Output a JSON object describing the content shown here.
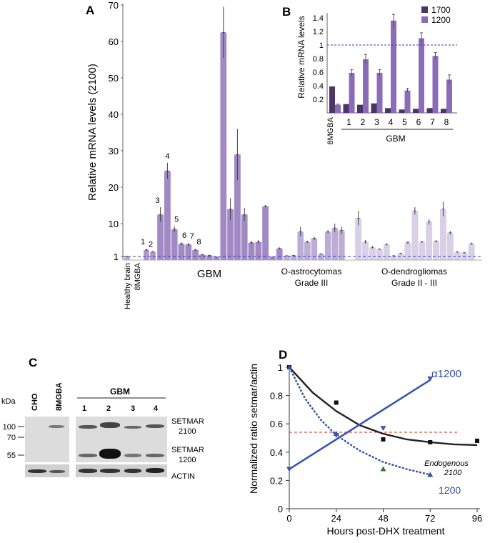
{
  "panelA": {
    "label": "A",
    "ylabel": "Relative mRNA levels (2100)",
    "yticks": [
      1,
      10,
      20,
      30,
      40,
      50,
      60,
      70
    ],
    "ylim": [
      0,
      70
    ],
    "groups": {
      "healthy": "Healthy brain",
      "mgba": "8MGBA",
      "gbm": "GBM",
      "oastro": "O-astrocytomas",
      "oastro_grade": "Grade III",
      "odendro": "O-dendrogliomas",
      "odendro_grade": "Grade II - III"
    },
    "sample_numbers": [
      "1",
      "2",
      "3",
      "4",
      "5",
      "6",
      "7",
      "8"
    ],
    "chart_data": {
      "type": "bar",
      "reference_line": 1,
      "healthy": [
        {
          "value": 1,
          "err": 0.2
        }
      ],
      "mgba": [
        {
          "value": 2.8,
          "err": 0.3
        },
        {
          "value": 2.3,
          "err": 0.2
        }
      ],
      "gbm": [
        {
          "value": 12.5,
          "err": 2.0
        },
        {
          "value": 24.5,
          "err": 2.2
        },
        {
          "value": 8.5,
          "err": 0.8
        },
        {
          "value": 4.5,
          "err": 0.4
        },
        {
          "value": 4.3,
          "err": 0.4
        },
        {
          "value": 2.8,
          "err": 0.3
        },
        {
          "value": 1.5,
          "err": 0.2
        },
        {
          "value": 1.3,
          "err": 0.2
        },
        {
          "value": 0.8,
          "err": 0.2
        },
        {
          "value": 62.5,
          "err": 7.0
        },
        {
          "value": 14.0,
          "err": 3.0
        },
        {
          "value": 29.0,
          "err": 7.0
        },
        {
          "value": 12.5,
          "err": 1.8
        },
        {
          "value": 4.8,
          "err": 0.5
        },
        {
          "value": 5.0,
          "err": 0.5
        },
        {
          "value": 14.8,
          "err": 0.3
        },
        {
          "value": 0.8,
          "err": 0.1
        },
        {
          "value": 3.2,
          "err": 0.3
        }
      ],
      "oastro": [
        {
          "value": 1.2,
          "err": 0.1
        },
        {
          "value": 1.3,
          "err": 0.1
        },
        {
          "value": 7.8,
          "err": 1.3
        },
        {
          "value": 5.0,
          "err": 0.3
        },
        {
          "value": 6.0,
          "err": 0.5
        },
        {
          "value": 1.7,
          "err": 0.2
        },
        {
          "value": 7.8,
          "err": 0.4
        },
        {
          "value": 8.8,
          "err": 1.2
        },
        {
          "value": 8.2,
          "err": 1.0
        }
      ],
      "odendro": [
        {
          "value": 11.5,
          "err": 2.0
        },
        {
          "value": 5.0,
          "err": 0.5
        },
        {
          "value": 3.5,
          "err": 0.3
        },
        {
          "value": 3.0,
          "err": 0.2
        },
        {
          "value": 4.3,
          "err": 0.3
        },
        {
          "value": 1.2,
          "err": 0.1
        },
        {
          "value": 1.8,
          "err": 0.2
        },
        {
          "value": 4.8,
          "err": 0.3
        },
        {
          "value": 13.5,
          "err": 1.0
        },
        {
          "value": 5.0,
          "err": 0.3
        },
        {
          "value": 10.5,
          "err": 0.8
        },
        {
          "value": 5.2,
          "err": 0.3
        },
        {
          "value": 14.0,
          "err": 2.0
        },
        {
          "value": 7.5,
          "err": 0.5
        },
        {
          "value": 2.2,
          "err": 0.2
        },
        {
          "value": 2.0,
          "err": 0.2
        },
        {
          "value": 4.5,
          "err": 0.3
        }
      ]
    }
  },
  "panelB": {
    "label": "B",
    "ylabel": "Relative mRNA levels",
    "yticks": [
      "0.2",
      "0.4",
      "0.6",
      "0.8",
      "1",
      "1.2",
      "1.4"
    ],
    "categories": [
      "8MGBA",
      "1",
      "2",
      "3",
      "4",
      "5",
      "6",
      "7",
      "8"
    ],
    "group_label": "GBM",
    "chart_data": {
      "type": "bar",
      "ylim": [
        0,
        1.6
      ],
      "reference_line": 1,
      "series": [
        {
          "name": "1700",
          "color": "#4a3566",
          "values": [
            0.39,
            0.13,
            0.12,
            0.14,
            0.07,
            0.05,
            0.06,
            0.07,
            0.06
          ]
        },
        {
          "name": "1200",
          "color": "#8c6cb8",
          "values": [
            0.12,
            0.59,
            0.79,
            0.59,
            1.36,
            0.33,
            1.1,
            0.84,
            0.49
          ],
          "errors": [
            0.01,
            0.05,
            0.07,
            0.05,
            0.09,
            0.03,
            0.08,
            0.05,
            0.07
          ]
        }
      ]
    }
  },
  "panelC": {
    "label": "C",
    "kda": "kDa",
    "markers": [
      "100",
      "70",
      "55"
    ],
    "lanes_left": [
      "CHO",
      "8MGBA"
    ],
    "group_label": "GBM",
    "lanes_right": [
      "1",
      "2",
      "3",
      "4"
    ],
    "band_label_2100": "SETMAR",
    "band_label_2100_sub": "2100",
    "band_label_1200": "SETMAR",
    "band_label_1200_sub": "1200",
    "actin_label": "ACTIN"
  },
  "panelD": {
    "label": "D",
    "ylabel": "Normalized ratio setmar/actin",
    "xlabel": "Hours post-DHX treatment",
    "xticks": [
      "0",
      "24",
      "48",
      "72",
      "96"
    ],
    "yticks": [
      "0",
      "0.2",
      "0.4",
      "0.6",
      "0.8",
      "1"
    ],
    "label_alpha": "α1200",
    "label_1200": "1200",
    "label_endog": "Endogenous",
    "label_endog_sub": "2100",
    "chart_data": {
      "type": "line",
      "xlim": [
        0,
        96
      ],
      "ylim": [
        0,
        1
      ],
      "reference_line": 0.5,
      "series": [
        {
          "name": "Endogenous 2100",
          "color": "#222222",
          "marker": "square",
          "x": [
            0,
            24,
            48,
            72,
            96
          ],
          "y": [
            1.0,
            0.75,
            0.49,
            0.47,
            0.48
          ],
          "fit": [
            [
              0,
              1.0
            ],
            [
              12,
              0.82
            ],
            [
              24,
              0.69
            ],
            [
              36,
              0.59
            ],
            [
              48,
              0.53
            ],
            [
              60,
              0.49
            ],
            [
              72,
              0.47
            ],
            [
              84,
              0.455
            ],
            [
              96,
              0.45
            ]
          ]
        },
        {
          "name": "1200",
          "color": "#2f4fa6",
          "marker": "triangle",
          "x": [
            0,
            24,
            48,
            72
          ],
          "y": [
            1.0,
            0.53,
            0.28,
            0.24
          ],
          "fit": [
            [
              0,
              1.0
            ],
            [
              8,
              0.78
            ],
            [
              16,
              0.63
            ],
            [
              24,
              0.52
            ],
            [
              36,
              0.41
            ],
            [
              48,
              0.33
            ],
            [
              60,
              0.28
            ],
            [
              72,
              0.24
            ]
          ]
        },
        {
          "name": "α1200",
          "color": "#3a56b0",
          "marker": "triangle-down",
          "x": [
            0,
            24,
            48,
            72
          ],
          "y": [
            0.28,
            0.52,
            0.57,
            0.92
          ],
          "fit": [
            [
              0,
              0.28
            ],
            [
              72,
              0.91
            ]
          ]
        }
      ]
    }
  }
}
